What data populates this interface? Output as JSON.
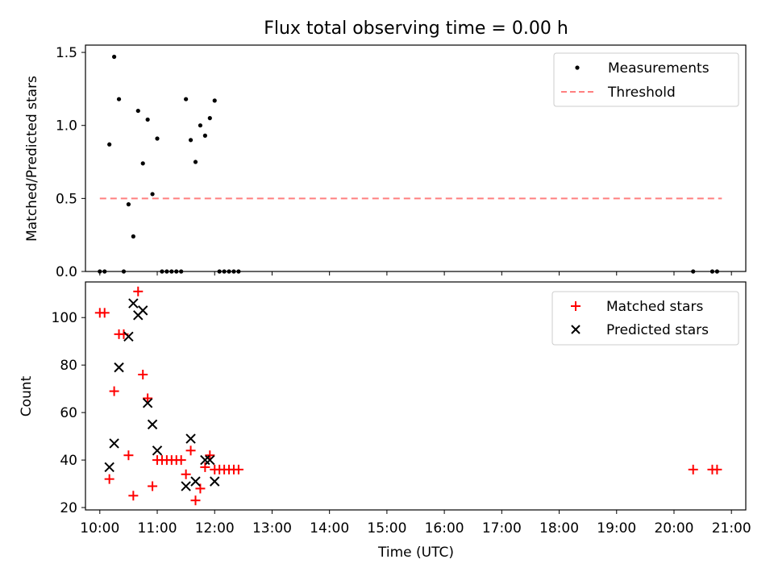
{
  "chart_data": [
    {
      "type": "scatter",
      "title": "Flux total observing time = 0.00 h",
      "xlabel": "",
      "ylabel": "Matched/Predicted stars",
      "xlim": [
        "09:45",
        "21:15"
      ],
      "ylim": [
        0,
        1.55
      ],
      "yticks": [
        "0.0",
        "0.5",
        "1.0",
        "1.5"
      ],
      "grid": false,
      "legend_position": "top-right",
      "series": [
        {
          "name": "Measurements",
          "kind": "points",
          "color": "#000000",
          "x": [
            "10:00",
            "10:05",
            "10:10",
            "10:15",
            "10:20",
            "10:25",
            "10:30",
            "10:35",
            "10:40",
            "10:45",
            "10:50",
            "10:55",
            "11:00",
            "11:05",
            "11:10",
            "11:15",
            "11:20",
            "11:25",
            "11:30",
            "11:35",
            "11:40",
            "11:45",
            "11:50",
            "11:55",
            "12:00",
            "12:05",
            "12:10",
            "12:15",
            "12:20",
            "12:25",
            "20:20",
            "20:40",
            "20:45"
          ],
          "y": [
            0.0,
            0.0,
            0.87,
            1.47,
            1.18,
            0.0,
            0.46,
            0.24,
            1.1,
            0.74,
            1.04,
            0.53,
            0.91,
            0.0,
            0.0,
            0.0,
            0.0,
            0.0,
            1.18,
            0.9,
            0.75,
            1.0,
            0.93,
            1.05,
            1.17,
            0.0,
            0.0,
            0.0,
            0.0,
            0.0,
            0.0,
            0.0,
            0.0
          ]
        },
        {
          "name": "Threshold",
          "kind": "dashed-line",
          "color": "#ff7f7f",
          "x": [
            "10:00",
            "20:50"
          ],
          "y": [
            0.5,
            0.5
          ]
        }
      ]
    },
    {
      "type": "scatter",
      "title": "",
      "xlabel": "Time (UTC)",
      "ylabel": "Count",
      "xlim": [
        "09:45",
        "21:15"
      ],
      "ylim": [
        19,
        115
      ],
      "xticks": [
        "10:00",
        "11:00",
        "12:00",
        "13:00",
        "14:00",
        "15:00",
        "16:00",
        "17:00",
        "18:00",
        "19:00",
        "20:00",
        "21:00"
      ],
      "yticks": [
        "20",
        "40",
        "60",
        "80",
        "100"
      ],
      "grid": false,
      "legend_position": "top-right",
      "series": [
        {
          "name": "Matched stars",
          "marker": "plus",
          "color": "#ff0000",
          "x": [
            "10:00",
            "10:05",
            "10:10",
            "10:15",
            "10:20",
            "10:25",
            "10:30",
            "10:35",
            "10:40",
            "10:45",
            "10:50",
            "10:55",
            "11:00",
            "11:05",
            "11:10",
            "11:15",
            "11:20",
            "11:25",
            "11:30",
            "11:35",
            "11:40",
            "11:45",
            "11:50",
            "11:55",
            "12:00",
            "12:05",
            "12:10",
            "12:15",
            "12:20",
            "12:25",
            "20:20",
            "20:40",
            "20:45"
          ],
          "y": [
            102,
            102,
            32,
            69,
            93,
            93,
            42,
            25,
            111,
            76,
            66,
            29,
            40,
            40,
            40,
            40,
            40,
            40,
            34,
            44,
            23,
            28,
            37,
            42,
            36,
            36,
            36,
            36,
            36,
            36,
            36,
            36,
            36
          ]
        },
        {
          "name": "Predicted stars",
          "marker": "x",
          "color": "#000000",
          "x": [
            "10:10",
            "10:15",
            "10:20",
            "10:30",
            "10:35",
            "10:40",
            "10:45",
            "10:50",
            "10:55",
            "11:00",
            "11:30",
            "11:35",
            "11:40",
            "11:50",
            "11:55",
            "12:00"
          ],
          "y": [
            37,
            47,
            79,
            92,
            106,
            101,
            103,
            64,
            55,
            44,
            29,
            49,
            31,
            40,
            40,
            31
          ]
        }
      ]
    }
  ]
}
